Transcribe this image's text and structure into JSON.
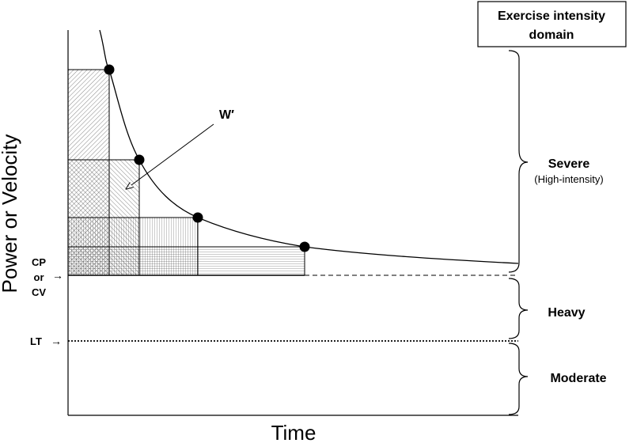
{
  "diagram": {
    "y_axis_label": "Power or Velocity",
    "x_axis_label": "Time",
    "cp_marker": [
      "CP",
      "or",
      "CV"
    ],
    "lt_marker": "LT",
    "w_prime_label": "W′",
    "legend_box_title": [
      "Exercise intensity",
      "domain"
    ],
    "domains": [
      {
        "name": "Severe",
        "sub": "(High-intensity)"
      },
      {
        "name": "Heavy",
        "sub": ""
      },
      {
        "name": "Moderate",
        "sub": ""
      }
    ],
    "arrow_glyph": "→"
  }
}
